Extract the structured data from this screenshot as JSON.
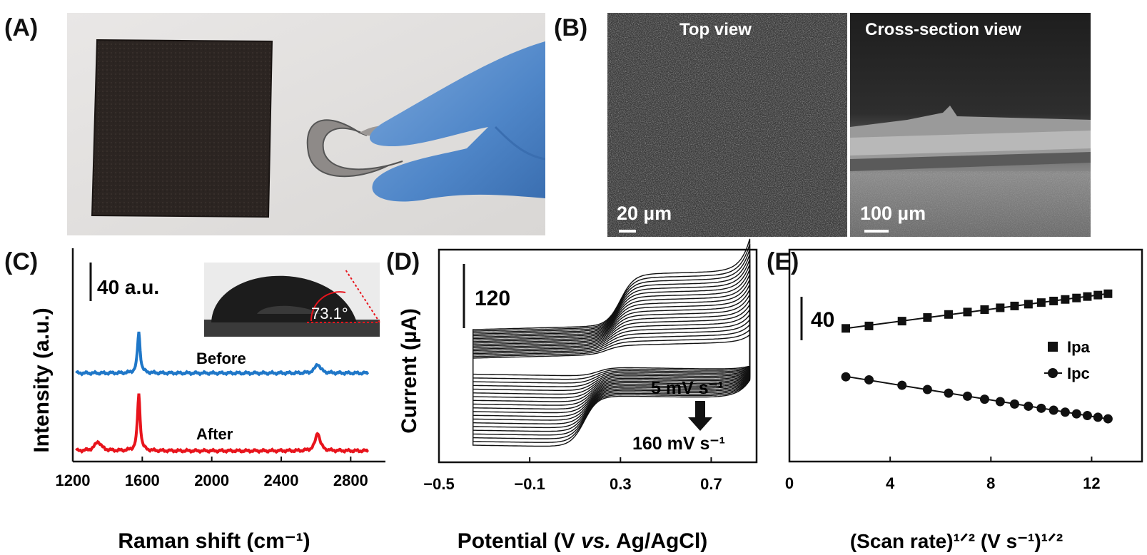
{
  "panels": {
    "a": {
      "label": "(A)"
    },
    "b": {
      "label": "(B)",
      "top_view_label": "Top view",
      "cross_view_label": "Cross-section view",
      "top_scalebar": "20 µm",
      "cross_scalebar": "100 µm"
    },
    "c": {
      "label": "(C)",
      "scalebar": "40 a.u.",
      "contact_angle": "73.1°"
    },
    "d": {
      "label": "(D)",
      "scalebar": "120",
      "annotation_start": "5 mV s⁻¹",
      "annotation_end": "160 mV s⁻¹"
    },
    "e": {
      "label": "(E)",
      "scalebar": "40"
    }
  },
  "colors": {
    "before": "#1f77c8",
    "after": "#e8141c",
    "glove": "#5b8fc9",
    "sem_dark": "#3a3a3a"
  },
  "chart_data": [
    {
      "type": "line",
      "panel": "C",
      "xlabel": "Raman shift (cm⁻¹)",
      "ylabel": "Intensity (a.u.)",
      "xlim": [
        1200,
        3000
      ],
      "xticks": [
        "1200",
        "1600",
        "2000",
        "2400",
        "2800"
      ],
      "yticks": [],
      "series": [
        {
          "name": "Before",
          "x": [
            1220,
            1345,
            1580,
            2610,
            2900
          ],
          "y": [
            0.2,
            0.2,
            18,
            4,
            0.2
          ]
        },
        {
          "name": "After",
          "x": [
            1220,
            1345,
            1580,
            2610,
            2900
          ],
          "y": [
            0.2,
            4,
            25,
            8,
            0.2
          ]
        }
      ],
      "legend": "inline"
    },
    {
      "type": "line",
      "panel": "D",
      "xlabel": "Potential (V vs. Ag/AgCl)",
      "ylabel": "Current (µA)",
      "xlim": [
        -0.5,
        0.9
      ],
      "xticks": [
        "−0.5",
        "−0.1",
        "0.3",
        "0.7"
      ],
      "yticks": [],
      "scan_rates_mV_s": [
        5,
        160
      ],
      "curve_count": 20,
      "potential_window": [
        -0.35,
        0.87
      ],
      "redox_center": 0.22
    },
    {
      "type": "scatter",
      "panel": "E",
      "xlabel": "(Scan rate)¹ᐟ² (V s⁻¹)¹ᐟ²",
      "xlim": [
        0,
        14
      ],
      "xticks": [
        "0",
        "4",
        "8",
        "12"
      ],
      "yticks": [],
      "x": [
        2.24,
        3.16,
        4.47,
        5.48,
        6.32,
        7.07,
        7.75,
        8.37,
        8.94,
        9.49,
        10.0,
        10.49,
        10.95,
        11.4,
        11.83,
        12.25,
        12.65
      ],
      "series": [
        {
          "name": "Ipa",
          "marker": "square",
          "y": [
            20,
            22,
            26,
            29,
            31.5,
            33.5,
            35.5,
            37,
            38.5,
            40,
            41.3,
            42.6,
            43.9,
            45.1,
            46.3,
            47.5,
            48.6
          ]
        },
        {
          "name": "Ipc",
          "marker": "circle",
          "y": [
            -20,
            -22.5,
            -27,
            -30.5,
            -33.5,
            -36,
            -38.5,
            -40.5,
            -42.5,
            -44.3,
            -46,
            -47.6,
            -49.2,
            -50.6,
            -52,
            -53.4,
            -54.7
          ]
        }
      ],
      "legend": "right"
    }
  ]
}
